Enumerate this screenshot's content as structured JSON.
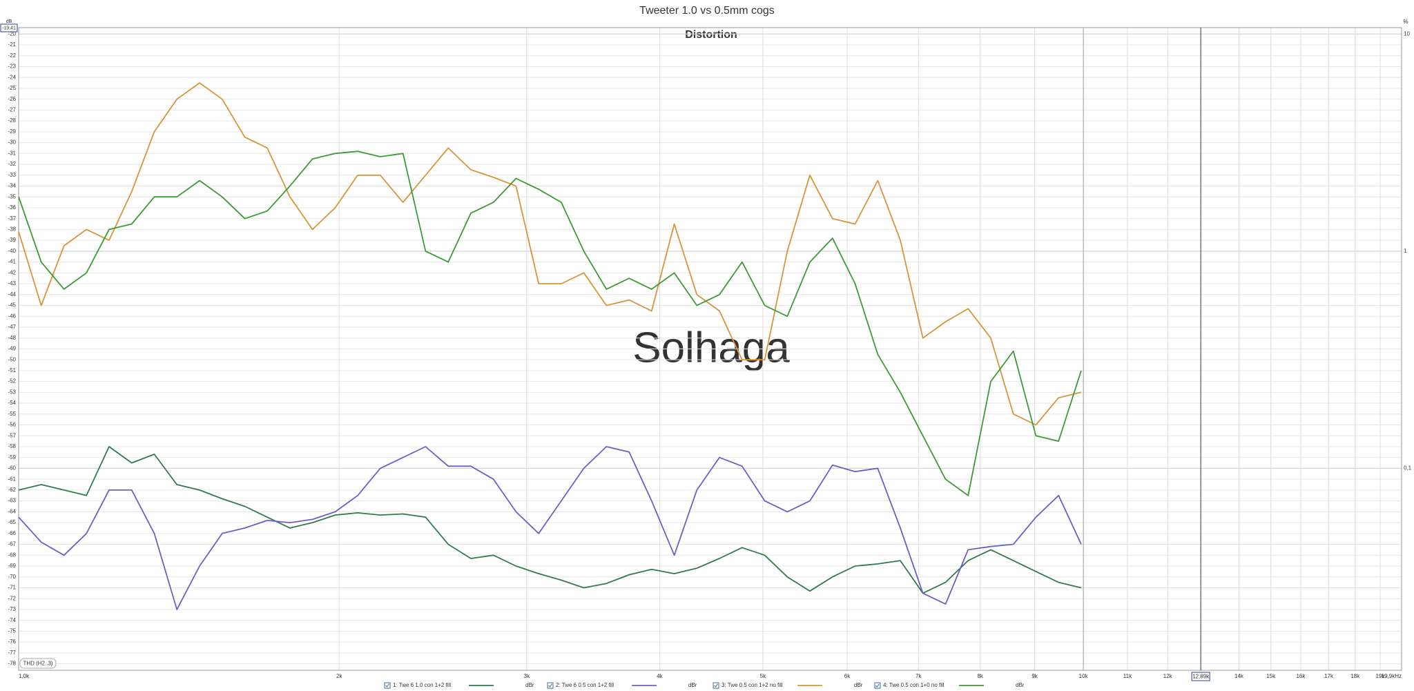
{
  "chart_data": {
    "type": "line",
    "title": "Tweeter 1.0 vs 0.5mm cogs",
    "subtitle": "Distortion",
    "watermark": "Solhaga",
    "badge": "THD (H2..3)",
    "ylabel": "dB",
    "y2label": "%",
    "xscale": "log",
    "y2scale": "log",
    "grid": true,
    "legend": "bottom",
    "cursor": {
      "x": 12890,
      "label": "12,89k",
      "y": -19.41,
      "y_label": "-19,41"
    },
    "x": [
      1000,
      1050,
      1103,
      1158,
      1216,
      1277,
      1341,
      1408,
      1479,
      1553,
      1631,
      1712,
      1798,
      1888,
      1983,
      2082,
      2186,
      2296,
      2411,
      2532,
      2659,
      2792,
      2932,
      3079,
      3233,
      3395,
      3565,
      3744,
      3931,
      4128,
      4335,
      4552,
      4780,
      5020,
      5271,
      5535,
      5813,
      6104,
      6410,
      6731,
      7068,
      7422,
      7794,
      8185,
      8595,
      9025,
      9478,
      9953
    ],
    "xlim": [
      1000,
      19900
    ],
    "xticks": [
      {
        "value": 1000,
        "label": "1,0k"
      },
      {
        "value": 2000,
        "label": "2k"
      },
      {
        "value": 3000,
        "label": "3k"
      },
      {
        "value": 4000,
        "label": "4k"
      },
      {
        "value": 5000,
        "label": "5k"
      },
      {
        "value": 6000,
        "label": "6k"
      },
      {
        "value": 7000,
        "label": "7k"
      },
      {
        "value": 8000,
        "label": "8k"
      },
      {
        "value": 9000,
        "label": "9k"
      },
      {
        "value": 10000,
        "label": "10k"
      },
      {
        "value": 11000,
        "label": "11k"
      },
      {
        "value": 12000,
        "label": "12k"
      },
      {
        "value": 14000,
        "label": "14k"
      },
      {
        "value": 15000,
        "label": "15k"
      },
      {
        "value": 16000,
        "label": "16k"
      },
      {
        "value": 17000,
        "label": "17k"
      },
      {
        "value": 18000,
        "label": "18k"
      },
      {
        "value": 19000,
        "label": "19k"
      },
      {
        "value": 19900,
        "label": "19,9kHz"
      }
    ],
    "ylim": [
      -78.6,
      -19.41
    ],
    "yticks": [
      -20,
      -21,
      -22,
      -23,
      -24,
      -25,
      -26,
      -27,
      -28,
      -29,
      -30,
      -31,
      -32,
      -33,
      -34,
      -35,
      -36,
      -37,
      -38,
      -39,
      -40,
      -41,
      -42,
      -43,
      -44,
      -45,
      -46,
      -47,
      -48,
      -49,
      -50,
      -51,
      -52,
      -53,
      -54,
      -55,
      -56,
      -57,
      -58,
      -59,
      -60,
      -61,
      -62,
      -63,
      -64,
      -65,
      -66,
      -67,
      -68,
      -69,
      -70,
      -71,
      -72,
      -73,
      -74,
      -75,
      -76,
      -77,
      -78
    ],
    "y2lim": [
      0.01175,
      10.7
    ],
    "y2ticks": [
      10,
      1,
      {
        "value": 0.1,
        "label": "0,1"
      }
    ],
    "series": [
      {
        "name": "1: Twe 6 1.0 con 1+2 fill",
        "unit": "dBr",
        "color": "#2f7a4e",
        "values": [
          -62,
          -61.5,
          -62,
          -62.5,
          -58,
          -59.5,
          -58.7,
          -61.5,
          -62,
          -62.8,
          -63.5,
          -64.5,
          -65.5,
          -65,
          -64.3,
          -64.1,
          -64.3,
          -64.2,
          -64.5,
          -67,
          -68.3,
          -68,
          -69,
          -69.7,
          -70.3,
          -71,
          -70.6,
          -69.8,
          -69.3,
          -69.7,
          -69.2,
          -68.3,
          -67.3,
          -68,
          -70,
          -71.3,
          -70,
          -69,
          -68.8,
          -68.5,
          -71.5,
          -70.5,
          -68.5,
          -67.5,
          -68.5,
          -69.5,
          -70.5,
          -71
        ]
      },
      {
        "name": "2: Twe 6 0.5 con 1+2 fill",
        "unit": "dBr",
        "color": "#6b5fc7",
        "values": [
          -64.5,
          -66.8,
          -68,
          -66,
          -62,
          -62,
          -66,
          -73,
          -69,
          -66,
          -65.5,
          -64.8,
          -65,
          -64.7,
          -64,
          -62.5,
          -60,
          -59,
          -58,
          -59.8,
          -59.8,
          -61,
          -64,
          -66,
          -63,
          -60,
          -58,
          -58.5,
          -63,
          -68,
          -62,
          -59,
          -59.8,
          -63,
          -64,
          -63,
          -59.7,
          -60.3,
          -60,
          -65.5,
          -71.5,
          -72.5,
          -67.5,
          -67.2,
          -67,
          -64.5,
          -62.5,
          -67
        ]
      },
      {
        "name": "3: Twe 0.5 con 1+2 no fill",
        "unit": "dBr",
        "color": "#d8943a",
        "values": [
          -38.2,
          -45,
          -39.5,
          -38,
          -39,
          -34.5,
          -29,
          -26,
          -24.5,
          -26,
          -29.5,
          -30.5,
          -35,
          -38,
          -36,
          -33,
          -33,
          -35.5,
          -33,
          -30.5,
          -32.5,
          -33.2,
          -34,
          -43,
          -43,
          -42,
          -45,
          -44.5,
          -45.5,
          -37.5,
          -44,
          -45.5,
          -50,
          -50,
          -40,
          -33,
          -37,
          -37.5,
          -33.5,
          -39,
          -48,
          -46.5,
          -45.3,
          -48,
          -55,
          -56,
          -53.5,
          -53
        ]
      },
      {
        "name": "4: Twe 0.5 con 1+0 no fill",
        "unit": "dBr",
        "color": "#3c9a32",
        "values": [
          -35,
          -41,
          -43.5,
          -42,
          -38,
          -37.5,
          -35,
          -35,
          -33.5,
          -35,
          -37,
          -36.3,
          -34,
          -31.5,
          -31,
          -30.8,
          -31.3,
          -31,
          -40,
          -41,
          -36.5,
          -35.5,
          -33.3,
          -34.3,
          -35.5,
          -40,
          -43.5,
          -42.5,
          -43.5,
          -42,
          -45,
          -44,
          -41,
          -45,
          -46,
          -41,
          -38.8,
          -43,
          -49.5,
          -53,
          -57,
          -61,
          -62.5,
          -52,
          -49.2,
          -57,
          -57.5,
          -51
        ]
      }
    ]
  }
}
